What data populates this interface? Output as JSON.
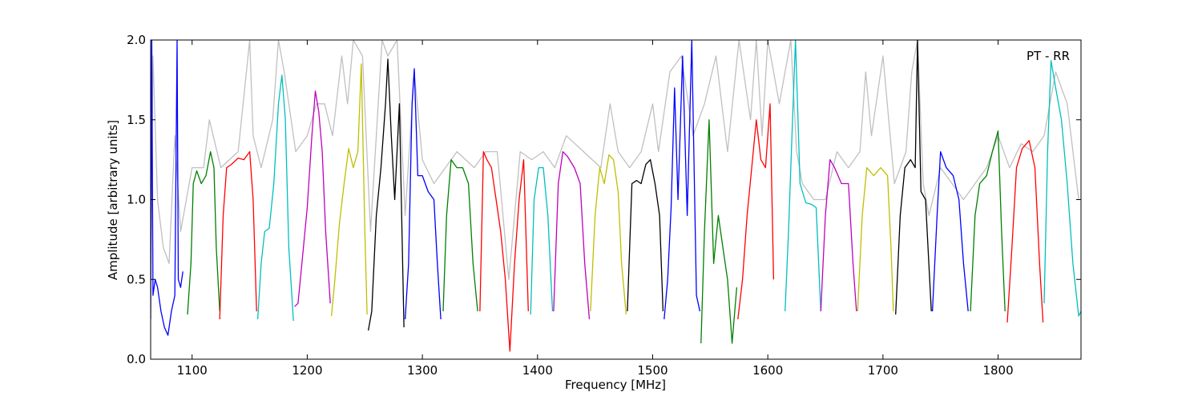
{
  "chart_data": {
    "type": "line",
    "annotation": "PT - RR",
    "xlabel": "Frequency [MHz]",
    "ylabel": "Amplitude [arbitrary units]",
    "xlim": [
      1064,
      1872
    ],
    "ylim": [
      0,
      2
    ],
    "xticks": [
      1100,
      1200,
      1300,
      1400,
      1500,
      1600,
      1700,
      1800
    ],
    "yticks": [
      {
        "value": 0,
        "label": "0.0"
      },
      {
        "value": 0.5,
        "label": "0.5"
      },
      {
        "value": 1,
        "label": "1.0"
      },
      {
        "value": 1.5,
        "label": "1.5"
      },
      {
        "value": 2,
        "label": "2.0"
      }
    ],
    "series": [
      {
        "color": "#c0c0c0",
        "x": [
          1064,
          1066,
          1070,
          1075,
          1080,
          1085,
          1090,
          1100,
          1110,
          1115,
          1125,
          1140,
          1150,
          1153,
          1160,
          1170,
          1175,
          1180,
          1190,
          1200,
          1208,
          1215,
          1222,
          1230,
          1235,
          1240,
          1248,
          1255,
          1265,
          1270,
          1278,
          1285,
          1293,
          1300,
          1310,
          1320,
          1330,
          1345,
          1355,
          1365,
          1375,
          1385,
          1395,
          1405,
          1415,
          1425,
          1440,
          1455,
          1463,
          1470,
          1480,
          1490,
          1500,
          1505,
          1515,
          1525,
          1535,
          1545,
          1555,
          1565,
          1575,
          1585,
          1590,
          1595,
          1600,
          1610,
          1620,
          1625,
          1630,
          1640,
          1650,
          1660,
          1670,
          1680,
          1685,
          1690,
          1700,
          1710,
          1720,
          1725,
          1730,
          1735,
          1740,
          1750,
          1760,
          1770,
          1780,
          1790,
          1800,
          1810,
          1820,
          1830,
          1840,
          1850,
          1860,
          1870
        ],
        "values": [
          0.6,
          1.9,
          1.0,
          0.7,
          0.6,
          1.4,
          0.8,
          1.2,
          1.2,
          1.5,
          1.2,
          1.3,
          2.0,
          1.4,
          1.2,
          1.5,
          2.0,
          1.8,
          1.3,
          1.4,
          1.6,
          1.6,
          1.4,
          1.9,
          1.6,
          2.0,
          1.9,
          0.8,
          2.0,
          1.9,
          2.0,
          0.9,
          1.8,
          1.25,
          1.1,
          1.2,
          1.3,
          1.2,
          1.3,
          1.3,
          0.5,
          1.3,
          1.25,
          1.3,
          1.2,
          1.4,
          1.3,
          1.2,
          1.6,
          1.3,
          1.2,
          1.3,
          1.6,
          1.3,
          1.8,
          1.9,
          1.4,
          1.6,
          1.9,
          1.3,
          2.0,
          1.5,
          2.0,
          1.4,
          2.0,
          1.6,
          2.0,
          1.3,
          1.1,
          1.0,
          1.0,
          1.3,
          1.2,
          1.3,
          1.8,
          1.4,
          1.9,
          1.1,
          1.3,
          1.8,
          2.0,
          1.1,
          0.9,
          1.2,
          1.1,
          1.0,
          1.1,
          1.2,
          1.4,
          1.2,
          1.35,
          1.3,
          1.4,
          1.8,
          1.6,
          1.0
        ]
      },
      {
        "color": "#0000ff",
        "x": [
          1064,
          1065,
          1066,
          1068,
          1070,
          1073,
          1076,
          1079,
          1082,
          1085,
          1087,
          1088,
          1090,
          1092
        ],
        "values": [
          0.25,
          2.0,
          0.4,
          0.5,
          0.45,
          0.3,
          0.2,
          0.15,
          0.3,
          0.4,
          2.0,
          0.5,
          0.45,
          0.55
        ]
      },
      {
        "color": "#008000",
        "x": [
          1096,
          1099,
          1101,
          1104,
          1108,
          1112,
          1116,
          1119,
          1121,
          1124
        ],
        "values": [
          0.28,
          0.6,
          1.1,
          1.18,
          1.1,
          1.15,
          1.3,
          1.2,
          0.7,
          0.3
        ]
      },
      {
        "color": "#ff0000",
        "x": [
          1124,
          1127,
          1130,
          1134,
          1140,
          1145,
          1150,
          1153,
          1156
        ],
        "values": [
          0.25,
          0.9,
          1.2,
          1.22,
          1.26,
          1.25,
          1.3,
          1.0,
          0.3
        ]
      },
      {
        "color": "#00bfbf",
        "x": [
          1157,
          1160,
          1163,
          1167,
          1171,
          1175,
          1178,
          1181,
          1184,
          1188
        ],
        "values": [
          0.25,
          0.6,
          0.8,
          0.82,
          1.1,
          1.6,
          1.78,
          1.5,
          0.7,
          0.24
        ]
      },
      {
        "color": "#bf00bf",
        "x": [
          1189,
          1192,
          1196,
          1200,
          1204,
          1207,
          1210,
          1213,
          1216,
          1220
        ],
        "values": [
          0.33,
          0.35,
          0.65,
          0.95,
          1.4,
          1.68,
          1.55,
          1.3,
          0.8,
          0.35
        ]
      },
      {
        "color": "#bfbf00",
        "x": [
          1221,
          1224,
          1228,
          1232,
          1236,
          1240,
          1244,
          1247,
          1250,
          1252
        ],
        "values": [
          0.27,
          0.5,
          0.85,
          1.1,
          1.32,
          1.2,
          1.3,
          1.85,
          0.8,
          0.28
        ]
      },
      {
        "color": "#000000",
        "x": [
          1253,
          1256,
          1260,
          1264,
          1268,
          1270,
          1273,
          1276,
          1280,
          1284
        ],
        "values": [
          0.18,
          0.3,
          0.9,
          1.2,
          1.6,
          1.88,
          1.4,
          1.0,
          1.6,
          0.2
        ]
      },
      {
        "color": "#0000ff",
        "x": [
          1285,
          1288,
          1291,
          1293,
          1296,
          1300,
          1305,
          1310,
          1313,
          1316
        ],
        "values": [
          0.25,
          0.6,
          1.6,
          1.82,
          1.15,
          1.15,
          1.05,
          1.0,
          0.6,
          0.25
        ]
      },
      {
        "color": "#008000",
        "x": [
          1318,
          1321,
          1325,
          1330,
          1335,
          1340,
          1344,
          1348
        ],
        "values": [
          0.3,
          0.9,
          1.25,
          1.2,
          1.2,
          1.1,
          0.6,
          0.3
        ]
      },
      {
        "color": "#ff0000",
        "x": [
          1350,
          1353,
          1356,
          1360,
          1364,
          1368,
          1372,
          1376,
          1380,
          1384,
          1388,
          1392
        ],
        "values": [
          0.3,
          1.3,
          1.25,
          1.2,
          1.0,
          0.8,
          0.5,
          0.05,
          0.6,
          1.0,
          1.25,
          0.3
        ]
      },
      {
        "color": "#00bfbf",
        "x": [
          1394,
          1397,
          1401,
          1405,
          1409,
          1413
        ],
        "values": [
          0.28,
          1.0,
          1.2,
          1.2,
          0.9,
          0.3
        ]
      },
      {
        "color": "#bf00bf",
        "x": [
          1414,
          1418,
          1422,
          1426,
          1432,
          1437,
          1441,
          1445
        ],
        "values": [
          0.3,
          1.1,
          1.3,
          1.27,
          1.2,
          1.1,
          0.6,
          0.25
        ]
      },
      {
        "color": "#bfbf00",
        "x": [
          1446,
          1450,
          1454,
          1458,
          1462,
          1466,
          1470,
          1473,
          1477
        ],
        "values": [
          0.3,
          0.9,
          1.2,
          1.1,
          1.28,
          1.25,
          1.05,
          0.6,
          0.28
        ]
      },
      {
        "color": "#000000",
        "x": [
          1478,
          1482,
          1486,
          1490,
          1494,
          1498,
          1502,
          1506,
          1509
        ],
        "values": [
          0.3,
          1.1,
          1.12,
          1.1,
          1.22,
          1.25,
          1.1,
          0.9,
          0.3
        ]
      },
      {
        "color": "#0000ff",
        "x": [
          1510,
          1513,
          1516,
          1519,
          1522,
          1526,
          1530,
          1534,
          1538,
          1541
        ],
        "values": [
          0.25,
          0.5,
          0.95,
          1.7,
          1.0,
          1.9,
          0.9,
          2.0,
          0.4,
          0.3
        ]
      },
      {
        "color": "#008000",
        "x": [
          1542,
          1545,
          1549,
          1553,
          1557,
          1561,
          1565,
          1569,
          1573
        ],
        "values": [
          0.1,
          0.8,
          1.5,
          0.6,
          0.9,
          0.7,
          0.5,
          0.1,
          0.45
        ]
      },
      {
        "color": "#ff0000",
        "x": [
          1574,
          1578,
          1582,
          1586,
          1590,
          1594,
          1598,
          1602,
          1605
        ],
        "values": [
          0.25,
          0.5,
          0.9,
          1.2,
          1.5,
          1.25,
          1.2,
          1.6,
          0.5
        ]
      },
      {
        "color": "#00bfbf",
        "x": [
          1615,
          1618,
          1621,
          1624,
          1628,
          1633,
          1638,
          1642,
          1646
        ],
        "values": [
          0.3,
          0.8,
          1.4,
          2.0,
          1.1,
          0.98,
          0.97,
          0.95,
          0.3
        ]
      },
      {
        "color": "#bf00bf",
        "x": [
          1646,
          1650,
          1654,
          1658,
          1664,
          1670,
          1674,
          1677
        ],
        "values": [
          0.3,
          0.9,
          1.25,
          1.2,
          1.1,
          1.1,
          0.6,
          0.3
        ]
      },
      {
        "color": "#bfbf00",
        "x": [
          1678,
          1682,
          1686,
          1692,
          1698,
          1704,
          1707,
          1709
        ],
        "values": [
          0.3,
          0.9,
          1.2,
          1.15,
          1.2,
          1.15,
          0.7,
          0.3
        ]
      },
      {
        "color": "#000000",
        "x": [
          1711,
          1715,
          1719,
          1724,
          1728,
          1730,
          1733,
          1737,
          1742
        ],
        "values": [
          0.28,
          0.9,
          1.2,
          1.25,
          1.2,
          2.0,
          1.05,
          1.0,
          0.3
        ]
      },
      {
        "color": "#0000ff",
        "x": [
          1743,
          1747,
          1750,
          1755,
          1761,
          1766,
          1770,
          1774
        ],
        "values": [
          0.3,
          0.9,
          1.3,
          1.2,
          1.15,
          1.0,
          0.6,
          0.3
        ]
      },
      {
        "color": "#008000",
        "x": [
          1776,
          1780,
          1784,
          1790,
          1795,
          1800,
          1803,
          1806
        ],
        "values": [
          0.3,
          0.9,
          1.1,
          1.15,
          1.3,
          1.43,
          0.8,
          0.3
        ]
      },
      {
        "color": "#ff0000",
        "x": [
          1808,
          1812,
          1816,
          1821,
          1827,
          1832,
          1836,
          1839
        ],
        "values": [
          0.23,
          0.7,
          1.2,
          1.32,
          1.37,
          1.2,
          0.6,
          0.23
        ]
      },
      {
        "color": "#00bfbf",
        "x": [
          1840,
          1843,
          1846,
          1850,
          1855,
          1860,
          1865,
          1870,
          1872
        ],
        "values": [
          0.35,
          1.3,
          1.87,
          1.7,
          1.5,
          1.1,
          0.6,
          0.27,
          0.3
        ]
      }
    ]
  }
}
